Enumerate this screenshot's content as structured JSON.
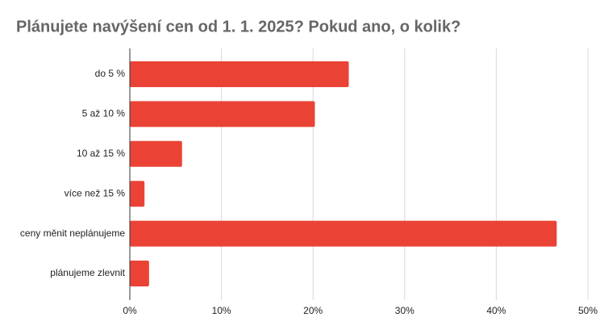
{
  "chart_data": {
    "type": "bar",
    "orientation": "horizontal",
    "title": "Plánujete navýšení cen od 1. 1. 2025? Pokud ano, o kolik?",
    "categories": [
      "do 5 %",
      "5 až 10 %",
      "10 až 15 %",
      "více než 15 %",
      "ceny měnit neplánujeme",
      "plánujeme zlevnit"
    ],
    "values": [
      23.9,
      20.2,
      5.7,
      1.6,
      46.6,
      2.1
    ],
    "color": "#ea4335",
    "xlim": [
      0,
      50
    ],
    "xticks": [
      {
        "value": 0,
        "label": "0%"
      },
      {
        "value": 10,
        "label": "10%"
      },
      {
        "value": 20,
        "label": "20%"
      },
      {
        "value": 30,
        "label": "30%"
      },
      {
        "value": 40,
        "label": "40%"
      },
      {
        "value": 50,
        "label": "50%"
      }
    ],
    "grid": true
  }
}
